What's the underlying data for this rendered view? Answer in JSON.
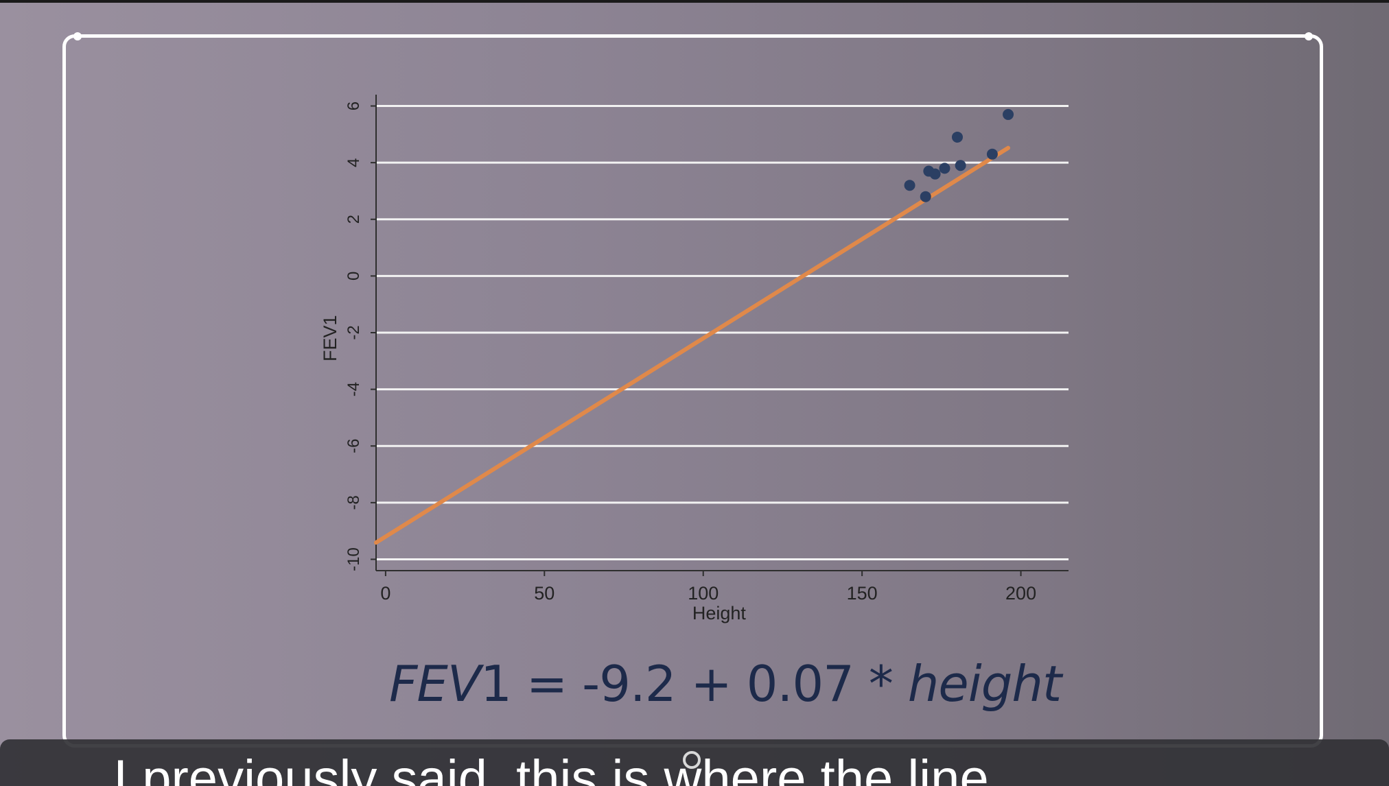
{
  "equation": {
    "fev_label": "FEV",
    "fev_subscript": "1",
    "operator_text": " = -9.2 + 0.07 * ",
    "height_word": "height"
  },
  "subtitle": {
    "text": "I previously said, this is where the line"
  },
  "colors": {
    "points": "#2b3f63",
    "fit_line": "#e0894a",
    "grid": "#f2f2f2",
    "axis": "#2e2e2e",
    "frame": "#ffffff"
  },
  "chart_data": {
    "type": "scatter",
    "xlabel": "Height",
    "ylabel": "FEV1",
    "xlim": [
      -3,
      215
    ],
    "ylim": [
      -10.4,
      6.4
    ],
    "x_ticks": [
      0,
      50,
      100,
      150,
      200
    ],
    "y_ticks": [
      -10,
      -8,
      -6,
      -4,
      -2,
      0,
      2,
      4,
      6
    ],
    "grid": "horizontal",
    "points": [
      {
        "x": 165,
        "y": 3.2
      },
      {
        "x": 170,
        "y": 2.8
      },
      {
        "x": 171,
        "y": 3.7
      },
      {
        "x": 173,
        "y": 3.6
      },
      {
        "x": 176,
        "y": 3.8
      },
      {
        "x": 180,
        "y": 4.9
      },
      {
        "x": 181,
        "y": 3.9
      },
      {
        "x": 191,
        "y": 4.3
      },
      {
        "x": 196,
        "y": 5.7
      }
    ],
    "fit_line": {
      "intercept": -9.2,
      "slope": 0.07,
      "x_range": [
        -3,
        196
      ]
    }
  }
}
